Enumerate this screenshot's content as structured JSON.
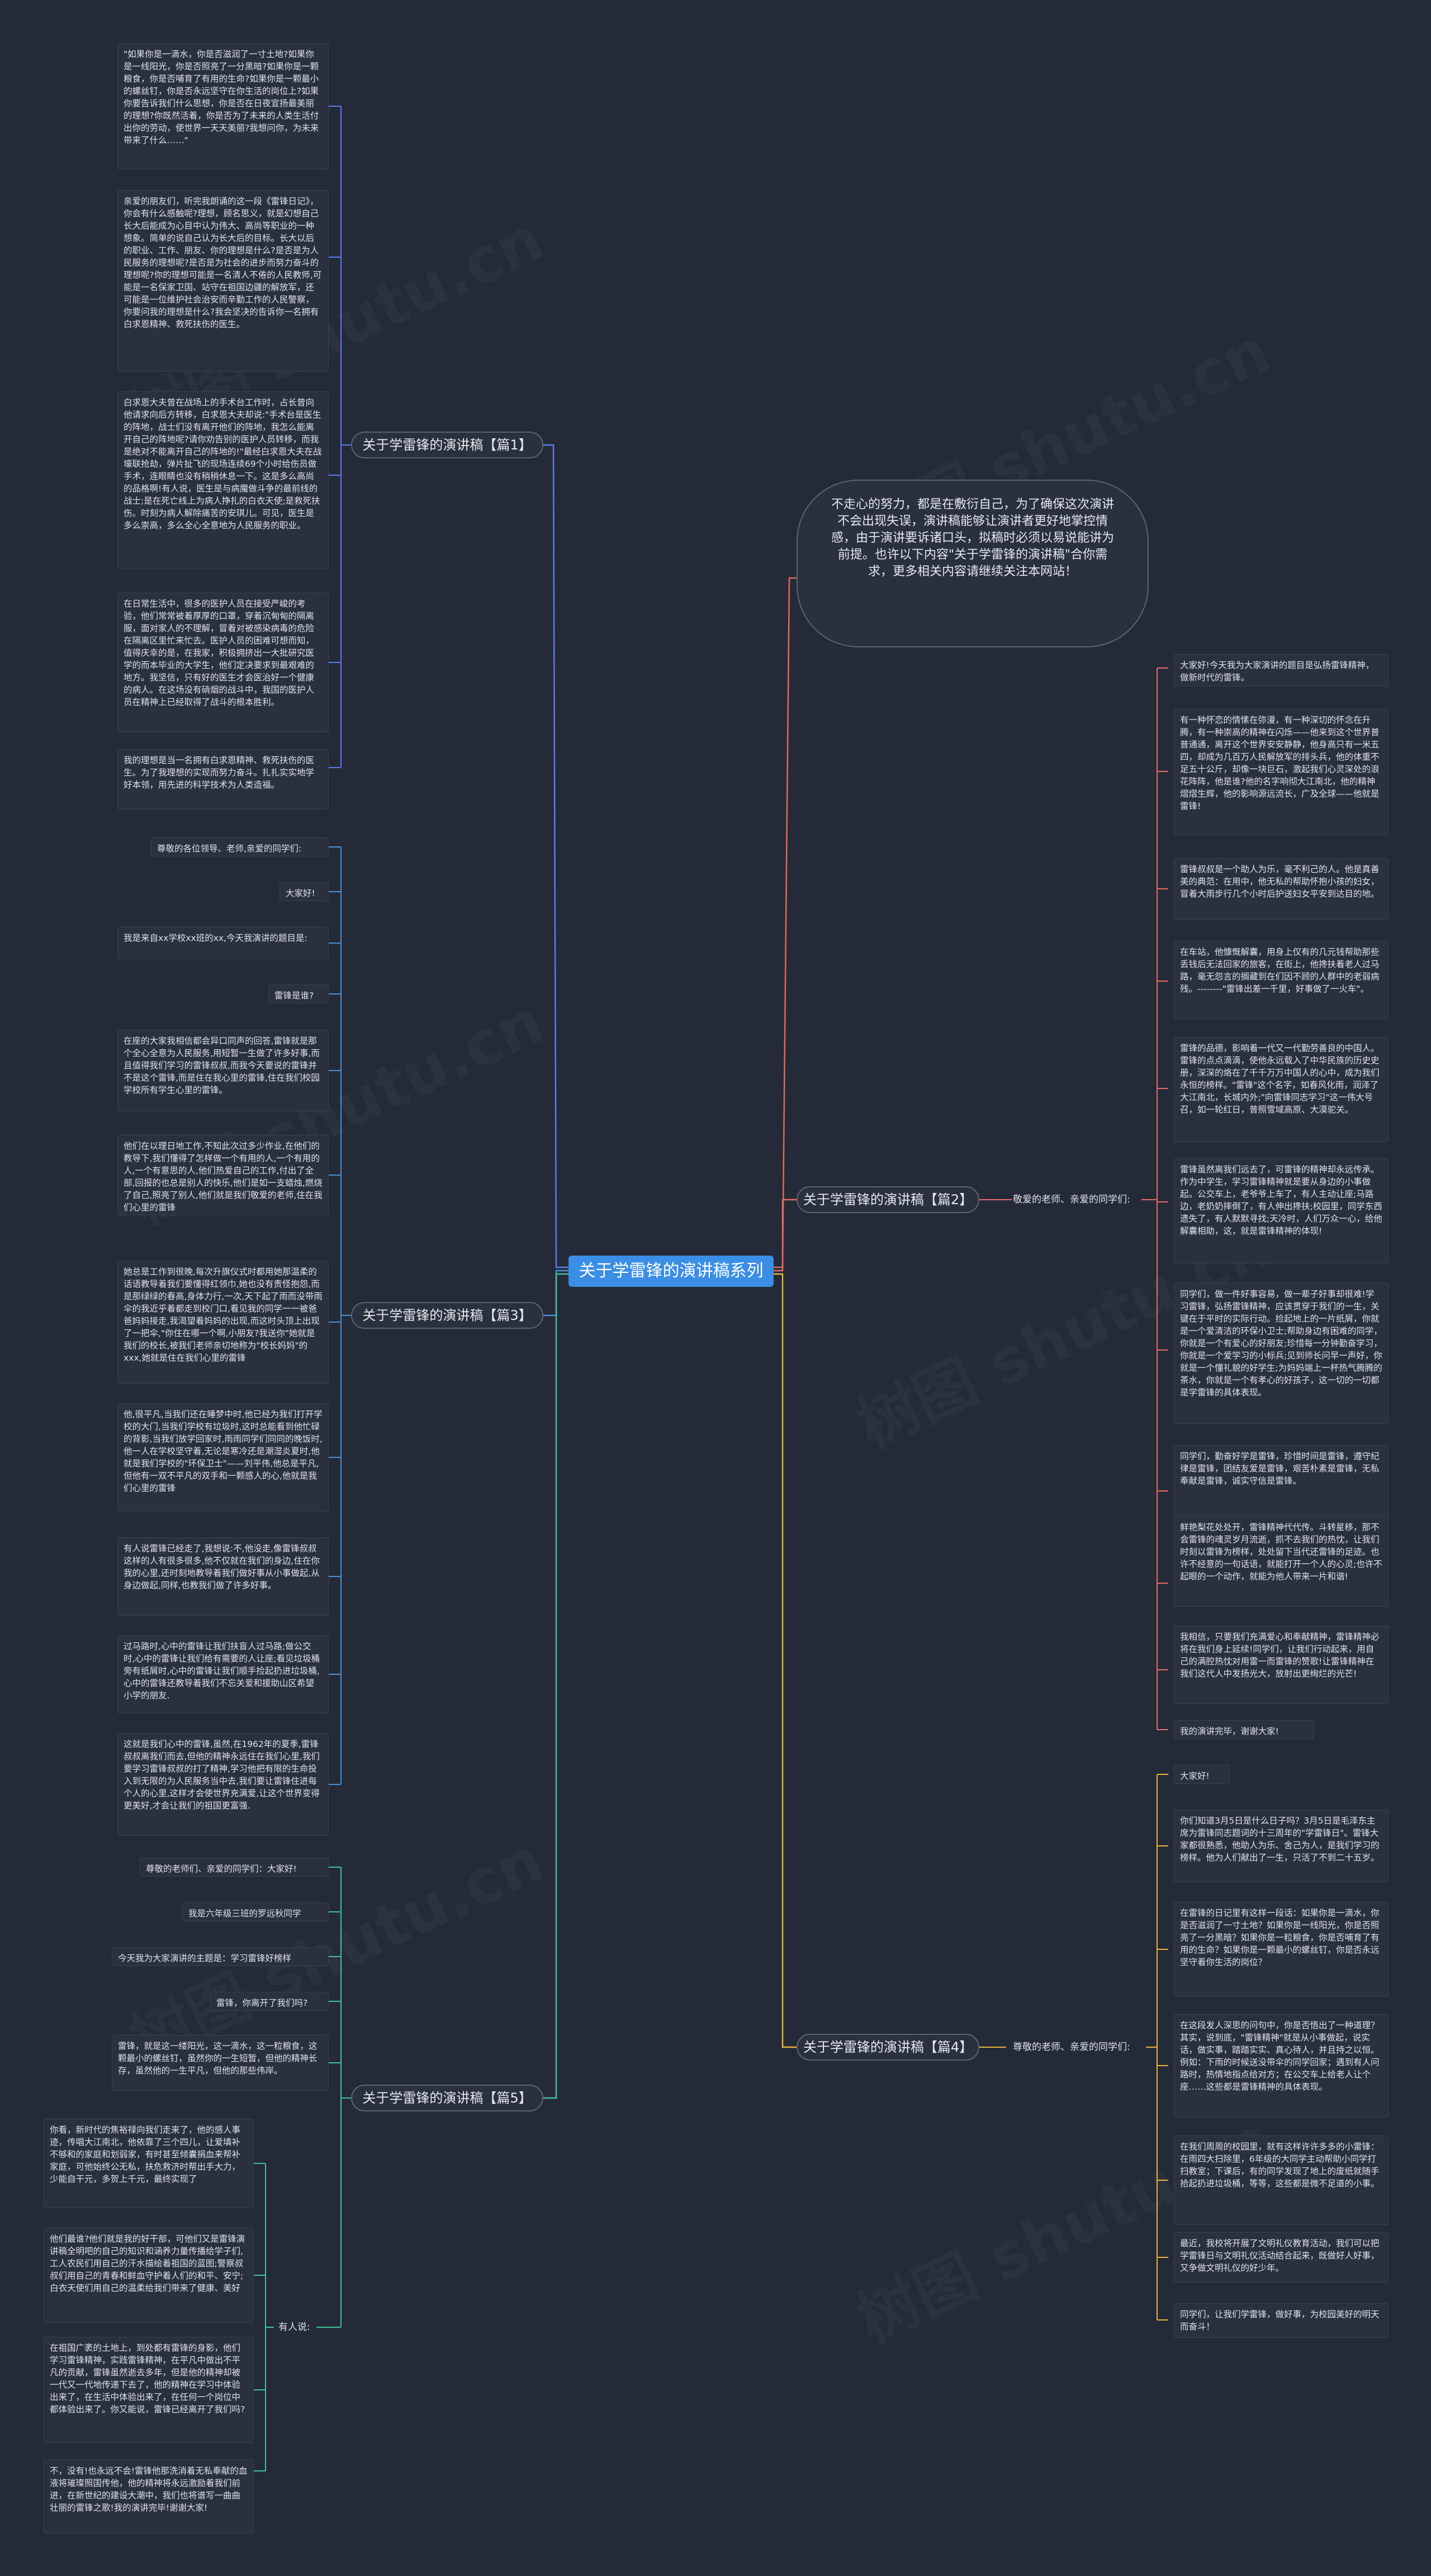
{
  "center": "关于学雷锋的演讲稿系列",
  "intro": "不走心的努力，都是在敷衍自己，为了确保这次演讲不会出现失误，演讲稿能够让演讲者更好地掌控情感，由于演讲要诉诸口头，拟稿时必须以易说能讲为前提。也许以下内容\"关于学雷锋的演讲稿\"合你需求，更多相关内容请继续关注本网站！",
  "watermark": "树图 shutu.cn",
  "p1": {
    "label": "关于学雷锋的演讲稿【篇1】",
    "notes": [
      "\"如果你是一滴水，你是否滋润了一寸土地?如果你是一线阳光，你是否照亮了一分黑暗?如果你是一颗粮食，你是否哺育了有用的生命?如果你是一颗最小的螺丝钉，你是否永远坚守在你生活的岗位上?如果你要告诉我们什么思想，你是否在日夜宣扬最美丽的理想?你既然活着，你是否为了未来的人类生活付出你的劳动，使世界一天天美丽?我想问你，为未来带来了什么……\"",
      "亲爱的朋友们，听完我朗诵的这一段《雷锋日记》，你会有什么感触呢?理想，顾名思义，就是幻想自己长大后能成为心目中认为伟大、高尚等职业的一种想象。简单的说自己认为长大后的目标。长大以后的职业、工作、朋友、你的理想是什么?是否是为人民服务的理想呢?是否是为社会的进步而努力奋斗的理想呢?你的理想可能是一名清人不倦的人民教师,可能是一名保家卫国、站守在祖国边疆的解放军，还可能是一位维护社会治安而辛勤工作的人民警察，你要问我的理想是什么?我会坚决的告诉你一名拥有白求恩精神、救死扶伤的医生。",
      "白求恩大夫曾在战场上的手术台工作时，占长曾向他请求向后方转移，白求恩大夫却说:\"手术台是医生的阵地，战士们没有离开他们的阵地，我怎么能离开自己的阵地呢?请你劝告别的医护人员转移，而我是绝对不能离开自己的阵地的!\"最经白求恩大夫在战壕联抢劫，弹片扯飞的现场连续69个小时给伤员做手术，连眼睛也没有稍稍休息一下。这是多么高尚的品格啊!有人说，医生是与病魔做斗争的最前线的战士;是在死亡线上为病人挣扎的白衣天使;是救死扶伤。时刻为病人解除痛苦的安琪儿。可见，医生是多么崇高，多么全心全意地为人民服务的职业。",
      "在日常生活中，很多的医护人员在接受严峻的考验，他们常常被着厚厚的口罩，穿着沉甸甸的隔离服，面对家人的不理解，冒着对被感染病毒的危险在隔离区里忙来忙去。医护人员的困难可想而知，值得庆幸的是，在我家，积极拥挤出一大批研究医学的而本毕业的大学生，他们定决要求到最艰难的地方。我坚信，只有好的医生才会医治好一个健康的病人。在这场没有硝烟的战斗中，我国的医护人员在精神上已经取得了战斗的根本胜利。",
      "我的理想是当一名拥有白求恩精神、救死扶伤的医生。为了我理想的实现而努力奋斗。扎扎实实地学好本领，用先进的科学技术为人类造福。"
    ]
  },
  "p3": {
    "label": "关于学雷锋的演讲稿【篇3】",
    "notes": [
      "尊敬的各位领导、老师,亲爱的同学们:",
      "大家好!",
      "我是来自xx学校xx班的xx,今天我演讲的题目是:",
      "雷锋是谁?",
      "在座的大家我相信都会异口同声的回答,雷锋就是那个全心全意为人民服务,用短暂一生做了许多好事,而且值得我们学习的雷锋叔叔,而我今天要说的雷锋并不是这个雷锋,而是住在我心里的雷锋,住在我们校园学校所有学生心里的雷锋。",
      "他们在以理日地工作,不知此次过多少作业,在他们的教导下,我们懂得了怎样做一个有用的人,一个有用的人,一个有意思的人,他们热爱自己的工作,付出了全部,回报的也总是别人的快乐,他们是如一支蜡烛,燃烧了自己,照亮了别人,他们就是我们敬爱的老师,住在我们心里的雷锋",
      "她总是工作到很晚,每次升旗仪式时都用她那温柔的话语教导着我们要懂得红领巾,她也没有责怪抱怨,而是那绿绿的春高,身体力行,一次,天下起了雨而没带雨伞的我近乎着都走到校门口,看见我的同学一一被爸爸妈妈接走,我渴望着妈妈的出现,而这时头顶上出现了一把伞,\"你住在哪一个啊,小朋友?我送你\"她就是我们的校长,被我们老师亲切地称为\"校长妈妈\"的xxx,她就是住在我们心里的雷锋",
      "他,很平凡,当我们还在睡梦中时,他已经为我们打开学校的大门,当我们学校有垃圾时,这时总能看到他忙碌的背影,当我们放学回家时,雨雨同学们同同的晚饭时,他一人在学校坚守着,无论是寒冷还是潮湿炎夏时,他就是我们学校的\"环保卫士\"——刘平伟,他总是平凡,但他有一双不平凡的双手和一颗感人的心,他就是我们心里的雷锋",
      "有人说雷锋已经走了,我想说:不,他没走,像雷锋叔叔这样的人有很多很多,他不仅就在我们的身边,住在你我的心里,还时刻地教导着我们做好事从小事做起,从身边做起,同样,也教我们做了许多好事。",
      "过马路时,心中的雷锋让我们扶盲人过马路;做公交时,心中的雷锋让我们给有需要的人让座;看见垃圾桶旁有纸屑时,心中的雷锋让我们顺手捡起扔进垃圾桶,心中的雷锋还教导着我们不忘关爱和援助山区希望小学的朋友.",
      "这就是我们心中的雷锋,虽然,在1962年的夏季,雷锋叔叔离我们而去,但他的精神永远住在我们心里,我们要学习雷锋叔叔的打了精神,学习他把有限的生命投入到无限的为人民服务当中去,我们要让雷锋住进每个人的心里,这样才会使世界充满爱,让这个世界变得更美好,才会让我们的祖国更富强."
    ]
  },
  "p5": {
    "label": "关于学雷锋的演讲稿【篇5】",
    "notes": [
      "尊敬的老师们、亲爱的同学们：大家好!",
      "我是六年级三班的罗远秋同学",
      "今天我为大家演讲的主题是：学习雷锋好榜样",
      "雷锋，你离开了我们吗?",
      "雷锋，就是这一缕阳光，这一滴水，这一粒粮食，这颗最小的螺丝钉，虽然你的一生短暂，但他的精神长存，虽然他的一生平凡，但他的那些伟岸。"
    ],
    "sub_label": "有人说:",
    "sub_notes": [
      "你看，新时代的焦裕禄向我们走来了，他的感人事迹，传唱大江南北，他依靠了三个四儿，让爱填补不够和的家庭和划弱家，有时甚至倾囊捐血来帮补家庭，可他始终公无私，扶危救济时帮出手大力，少能自干元，多贺上千元，最终实现了",
      "他们最谁?他们就是我的好干部，可他们又是雷锋演讲稿全明吧的自己的知识和涵养力量传播给学子们,工人农民们用自己的汗水描绘着祖国的蓝图;警察叔叔们用自己的青春和鲜血守护着人们的和平、安宁;白衣天使们用自己的温柔给我们带来了健康、美好",
      "在祖国广袤的土地上，到处都有雷锋的身影，他们学习雷锋精神，实践雷锋精神，在平凡中做出不平凡的贡献，雷锋虽然逝去多年，但是他的精神却被一代又一代地传递下去了，他的精神在学习中体验出来了，在生活中体验出来了，在任何一个岗位中都体验出来了。你又能说，雷锋已经离开了我们吗?",
      "不，没有!也永远不会!雷锋他那洗消着无私奉献的血液将璀璨照国传他，他的精神将永远激励着我们前进，在新世纪的建设大潮中，我们也将谱写一曲曲壮丽的雷锋之歌!我的演讲完毕!谢谢大家!"
    ]
  },
  "p2": {
    "label": "关于学雷锋的演讲稿【篇2】",
    "sub_label": "敬爱的老师、亲爱的同学们:",
    "notes": [
      "大家好!今天我为大家演讲的题目是弘扬雷锋精神，做新时代的雷锋。",
      "有一种怀恋的情愫在弥漫，有一种深切的怀念在升腾，有一种崇高的精神在闪烁——他来到这个世界普普通通，离开这个世界安安静静，他身高只有一米五四，却成为几百万人民解放军的排头兵，他的体重不足五十公斤，却像一块巨石，激起我们心灵深处的浪花阵阵，他是谁?他的名字响彻大江南北，他的精神熠熠生辉，他的影响源远流长，广及全球——他就是雷锋!",
      "雷锋叔叔是一个助人为乐，毫不利己的人。他是真善美的典范：在用中，他无私的帮助怀抱小孩的妇女，冒着大雨步行几个小时后护送妇女平安到达目的地。",
      "在车站，他慷慨解囊，用身上仅有的几元钱帮助那些丢钱后无法回家的旅客，在街上，他搀扶着老人过马路，毫无怨言的搁藏到在们因不顾的人群中的老弱病残。--------\"雷锋出差一千里，好事做了一火车\"。",
      "雷锋的品德，影响着一代又一代勤劳善良的中国人。雷锋的点点滴滴，使他永远载入了中华民族的历史史册，深深的烙在了千千万万中国人的心中，成为我们永恒的榜样。\"雷锋\"这个名字，如春风化雨，润泽了大江南北，长城内外;\"向雷锋同志学习\"这一伟大号召，如一轮红日，普照雪域高原、大漠驼关。",
      "雷锋虽然离我们远去了，可雷锋的精神却永远传承。作为中学生，学习雷锋精神就是要从身边的小事做起。公交车上，老爷爷上车了，有人主动让座;马路边，老奶奶摔倒了，有人伸出搀扶;校园里，同学东西遗失了，有人默默寻找;天冷时，人们万众一心，给他解囊相助，这，就是雷锋精神的体现!",
      "同学们，做一件好事容易，做一辈子好事却很难!学习雷锋，弘扬雷锋精神，应该贯穿于我们的一生，关键在于平时的实际行动。捡起地上的一片纸屑，你就是一个爱清洁的环保小卫士;帮助身边有困难的同学，你就是一个有爱心的好朋友;珍惜每一分钟勤奋学习，你就是一个爱学习的小标兵;见到师长问早一声好，你就是一个懂礼貌的好学生;为妈妈端上一杯热气腾腾的茶水，你就是一个有孝心的好孩子，这一切的一切都是学雷锋的具体表现。",
      "同学们，勤奋好学是雷锋，珍惜时间是雷锋，遵守纪律是雷锋，团结友爱是雷锋，艰苦朴素是雷锋，无私奉献是雷锋，诚实守信是雷锋。",
      "鲜艳梨花处处开，雷锋精神代代传。斗转星移，那不会雷锋的魂灵岁月流逝，抓不去我们的热忱，让我们时刻以雷锋为榜样，处处留下当代还雷锋的足迹。也许不经意的一句话语，就能打开一个人的心灵;也许不起眼的一个动作，就能为他人带来一片和谐!",
      "我相信，只要我们充满爱心和奉献精神，雷锋精神必将在我们身上延续!同学们，让我们行动起来，用自己的满腔热忱对用雷一而雷锋的赞歌!让雷锋精神在我们这代人中发扬光大，放射出更绚烂的光芒!",
      "我的演讲完毕，谢谢大家!"
    ]
  },
  "p4": {
    "label": "关于学雷锋的演讲稿【篇4】",
    "sub_label": "尊敬的老师、亲爱的同学们:",
    "notes": [
      "大家好!",
      "你们知道3月5日是什么日子吗？3月5日是毛泽东主席为雷锋同志题词的十三周年的\"学雷锋日\"。雷锋大家都很熟悉，他助人为乐、舍己为人，是我们学习的榜样。他为人们献出了一生，只活了不到二十五岁。",
      "在雷锋的日记里有这样一段话：如果你是一滴水，你是否滋润了一寸土地？如果你是一线阳光，你是否照亮了一分黑暗？如果你是一粒粮食，你是否哺育了有用的生命？如果你是一颗最小的螺丝钉，你是否永远坚守着你生活的岗位？",
      "在这段发人深思的问句中，你是否悟出了一种道理？其实，说到底，\"雷锋精神\"就是从小事做起，说实话，做实事，踏踏实实、真心待人，并且持之以恒。例如：下雨的时候送没带伞的同学回家；遇到有人问路时，热情地指点给对方；在公交车上给老人让个座……这些都是雷锋精神的具体表现。",
      "在我们周周的校园里，就有这样许许多多的小雷锋：在雨四大扫除里，6年级的大同学主动帮助小同学打扫教室；下课后，有的同学发现了地上的废纸就随手拾起扔进垃圾桶，等等，这些都是微不足道的小事。",
      "最近，我校将开展了文明礼仪教育活动，我们可以把学雷锋日与文明礼仪活动结合起来，既做好人好事，又争做文明礼仪的好少年。",
      "同学们，让我们学雷锋，做好事，为校园美好的明天而奋斗！"
    ]
  },
  "colors": {
    "background": "#252a38",
    "center": "#3a8ee6",
    "p1": "#5b7cf2",
    "p3": "#4a90d0",
    "p5": "#3fc398",
    "p2": "#e86a66",
    "p4": "#e7b53a",
    "intro": "#e06a55"
  }
}
